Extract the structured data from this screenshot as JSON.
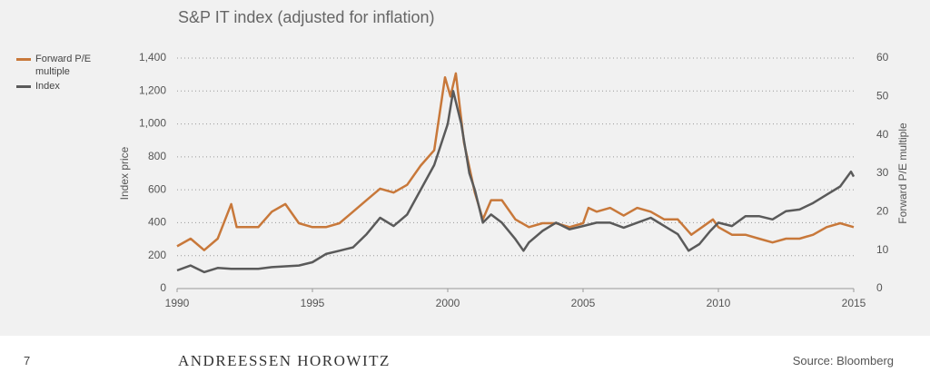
{
  "chart_data": {
    "type": "line",
    "title": "S&P IT index (adjusted for inflation)",
    "ylabel": "Index price",
    "y2label": "Forward P/E multiple",
    "xlim": [
      1990,
      2015
    ],
    "xticks": [
      1990,
      1995,
      2000,
      2005,
      2010,
      2015
    ],
    "ylim": [
      0,
      1400
    ],
    "yticks": [
      0,
      200,
      400,
      600,
      800,
      {
        "value": 1000,
        "label": "1,000"
      },
      {
        "value": 1200,
        "label": "1,200"
      },
      {
        "value": 1400,
        "label": "1,400"
      }
    ],
    "y2lim": [
      0,
      60
    ],
    "y2ticks": [
      0,
      10,
      20,
      30,
      40,
      50,
      60
    ],
    "grid": true,
    "series": [
      {
        "name": "Forward P/E multiple",
        "color": "#c8783a",
        "axis": "y2",
        "x": [
          1990,
          1990.5,
          1991,
          1991.5,
          1992,
          1992.2,
          1993,
          1993.5,
          1994,
          1994.5,
          1995,
          1995.5,
          1996,
          1996.5,
          1997,
          1997.5,
          1998,
          1998.5,
          1999,
          1999.5,
          1999.9,
          2000.1,
          2000.3,
          2000.6,
          2001,
          2001.3,
          2001.6,
          2002,
          2002.5,
          2003,
          2003.5,
          2004,
          2004.5,
          2005,
          2005.2,
          2005.5,
          2006,
          2006.5,
          2007,
          2007.5,
          2008,
          2008.5,
          2009,
          2009.4,
          2009.8,
          2010,
          2010.5,
          2011,
          2011.5,
          2012,
          2012.5,
          2013,
          2013.5,
          2014,
          2014.5,
          2015
        ],
        "values": [
          11,
          13,
          10,
          13,
          22,
          16,
          16,
          20,
          22,
          17,
          16,
          16,
          17,
          20,
          23,
          26,
          25,
          27,
          32,
          36,
          55,
          50,
          56,
          38,
          25,
          18,
          23,
          23,
          18,
          16,
          17,
          17,
          16,
          17,
          21,
          20,
          21,
          19,
          21,
          20,
          18,
          18,
          14,
          16,
          18,
          16,
          14,
          14,
          13,
          12,
          13,
          13,
          14,
          16,
          17,
          16
        ]
      },
      {
        "name": "Index",
        "color": "#5a5a5a",
        "x": [
          1990,
          1990.5,
          1991,
          1991.5,
          1992,
          1993,
          1993.5,
          1994,
          1994.5,
          1995,
          1995.5,
          1996,
          1996.5,
          1997,
          1997.5,
          1998,
          1998.5,
          1999,
          1999.5,
          2000,
          2000.2,
          2000.5,
          2000.8,
          2001,
          2001.3,
          2001.6,
          2002,
          2002.5,
          2002.8,
          2003,
          2003.5,
          2004,
          2004.5,
          2005,
          2005.5,
          2006,
          2006.5,
          2007,
          2007.5,
          2008,
          2008.5,
          2008.9,
          2009.3,
          2009.7,
          2010,
          2010.5,
          2011,
          2011.5,
          2012,
          2012.5,
          2013,
          2013.5,
          2014,
          2014.5,
          2014.9,
          2015
        ],
        "values": [
          110,
          140,
          100,
          125,
          120,
          120,
          130,
          135,
          140,
          160,
          210,
          230,
          250,
          330,
          430,
          380,
          450,
          600,
          750,
          1000,
          1200,
          1000,
          700,
          600,
          400,
          450,
          400,
          300,
          230,
          280,
          350,
          400,
          360,
          380,
          400,
          400,
          370,
          400,
          430,
          380,
          330,
          230,
          270,
          350,
          400,
          380,
          440,
          440,
          420,
          470,
          480,
          520,
          570,
          620,
          710,
          680
        ]
      }
    ]
  },
  "footer": {
    "page": "7",
    "brand": "ANDREESSEN HOROWITZ",
    "source": "Source: Bloomberg"
  }
}
